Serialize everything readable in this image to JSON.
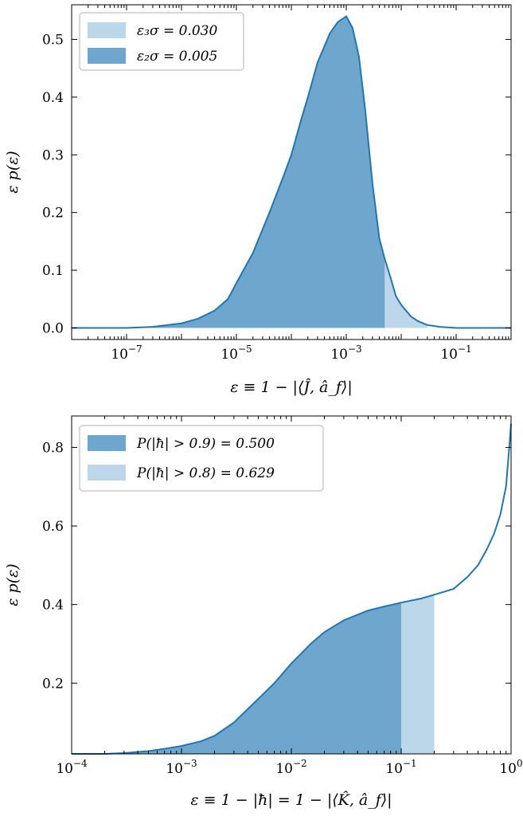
{
  "colors": {
    "line": "#1f77b4",
    "fill_dark": "#6ea6cd",
    "fill_light": "#bcd6ea",
    "axis": "#000000",
    "legend_border": "#cccccc"
  },
  "chart_data": [
    {
      "type": "area",
      "xscale": "log",
      "xlim": [
        1e-08,
        1
      ],
      "ylim": [
        -0.02,
        0.56
      ],
      "xticks": [
        {
          "value": 1e-07,
          "label": "10−7"
        },
        {
          "value": 1e-05,
          "label": "10−5"
        },
        {
          "value": 0.001,
          "label": "10−3"
        },
        {
          "value": 0.1,
          "label": "10−1"
        }
      ],
      "yticks": [
        {
          "value": 0.0,
          "label": "0.0"
        },
        {
          "value": 0.1,
          "label": "0.1"
        },
        {
          "value": 0.2,
          "label": "0.2"
        },
        {
          "value": 0.3,
          "label": "0.3"
        },
        {
          "value": 0.4,
          "label": "0.4"
        },
        {
          "value": 0.5,
          "label": "0.5"
        }
      ],
      "xlabel": "ε ≡ 1 − |⟨Ĵ, â_f⟩|",
      "ylabel": "ε p(ε)",
      "legend_position": "top-left",
      "x": [
        1e-08,
        1e-07,
        3e-07,
        1e-06,
        2e-06,
        4e-06,
        7e-06,
        1e-05,
        2e-05,
        4e-05,
        7e-05,
        0.0001,
        0.00015,
        0.0002,
        0.0003,
        0.0005,
        0.0007,
        0.001,
        0.0013,
        0.0017,
        0.0022,
        0.003,
        0.004,
        0.005,
        0.0065,
        0.008,
        0.01,
        0.015,
        0.02,
        0.03,
        0.05,
        0.1,
        0.3,
        1
      ],
      "y": [
        0.0,
        0.0,
        0.002,
        0.008,
        0.016,
        0.03,
        0.05,
        0.078,
        0.13,
        0.2,
        0.26,
        0.3,
        0.36,
        0.4,
        0.46,
        0.51,
        0.53,
        0.54,
        0.52,
        0.47,
        0.38,
        0.25,
        0.155,
        0.12,
        0.085,
        0.055,
        0.04,
        0.02,
        0.012,
        0.005,
        0.002,
        0.0,
        0.0,
        0.0
      ],
      "regions": [
        {
          "name": "ε₃σ = 0.030",
          "limit": 0.03,
          "color": "#bcd6ea"
        },
        {
          "name": "ε₂σ = 0.005",
          "limit": 0.005,
          "color": "#6ea6cd"
        }
      ]
    },
    {
      "type": "area",
      "xscale": "log",
      "xlim": [
        0.0001,
        1
      ],
      "ylim": [
        0.02,
        0.88
      ],
      "xticks": [
        {
          "value": 0.0001,
          "label": "10−4"
        },
        {
          "value": 0.001,
          "label": "10−3"
        },
        {
          "value": 0.01,
          "label": "10−2"
        },
        {
          "value": 0.1,
          "label": "10−1"
        },
        {
          "value": 1,
          "label": "10⁰"
        }
      ],
      "yticks": [
        {
          "value": 0.2,
          "label": "0.2"
        },
        {
          "value": 0.4,
          "label": "0.4"
        },
        {
          "value": 0.6,
          "label": "0.6"
        },
        {
          "value": 0.8,
          "label": "0.8"
        }
      ],
      "xlabel": "ε ≡ 1 − |ħ| = 1 − |⟨K̂, â_f⟩|",
      "ylabel": "ε p(ε)",
      "legend_position": "top-left",
      "x": [
        0.0001,
        0.0002,
        0.0003,
        0.0005,
        0.0007,
        0.001,
        0.0015,
        0.002,
        0.003,
        0.005,
        0.007,
        0.01,
        0.015,
        0.02,
        0.03,
        0.05,
        0.07,
        0.1,
        0.15,
        0.2,
        0.3,
        0.4,
        0.5,
        0.6,
        0.7,
        0.8,
        0.9,
        0.95,
        1
      ],
      "y": [
        0.02,
        0.02,
        0.022,
        0.027,
        0.033,
        0.04,
        0.052,
        0.066,
        0.1,
        0.16,
        0.2,
        0.25,
        0.3,
        0.33,
        0.36,
        0.385,
        0.395,
        0.405,
        0.415,
        0.425,
        0.44,
        0.47,
        0.5,
        0.54,
        0.58,
        0.63,
        0.7,
        0.78,
        0.86
      ],
      "regions": [
        {
          "name": "P(|ħ| > 0.9) = 0.500",
          "limit": 0.1,
          "color": "#6ea6cd"
        },
        {
          "name": "P(|ħ| > 0.8) = 0.629",
          "limit": 0.2,
          "color": "#bcd6ea"
        }
      ]
    }
  ]
}
